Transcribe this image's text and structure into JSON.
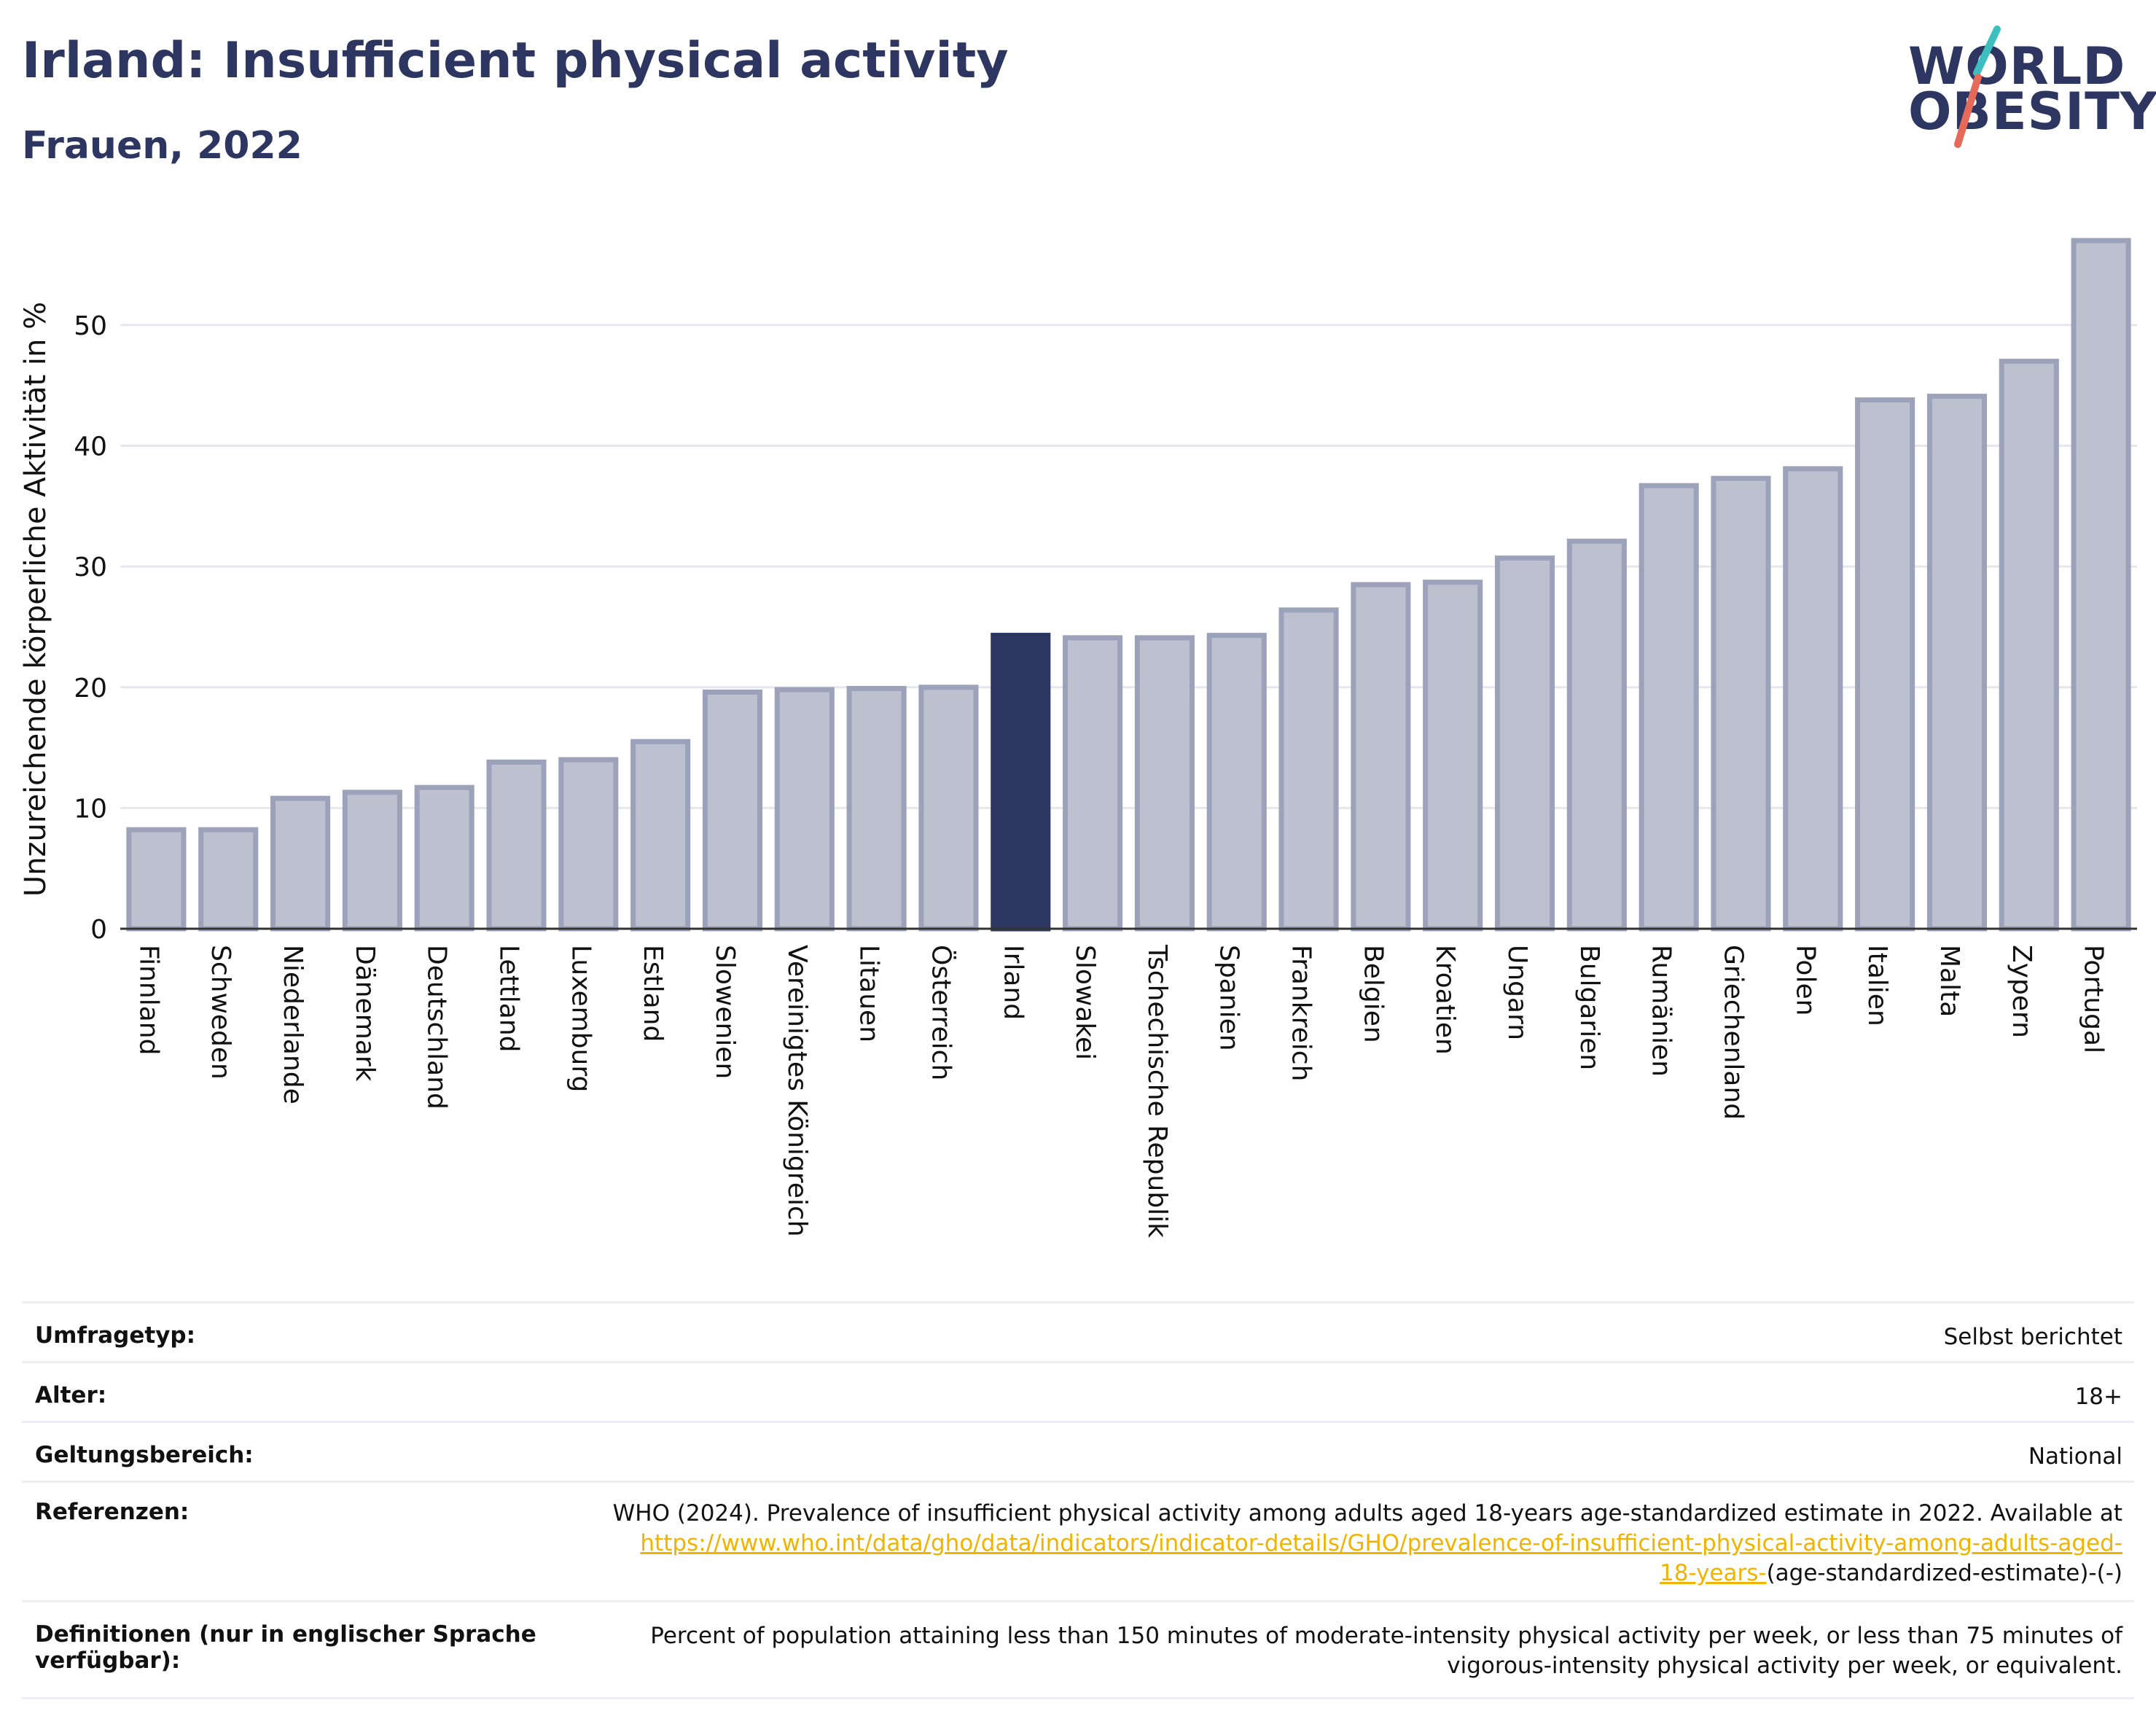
{
  "header": {
    "title": "Irland: Insufficient physical activity",
    "subtitle": "Frauen, 2022"
  },
  "logo": {
    "line1": "WORLD",
    "line2": "OBESITY",
    "text_color": "#2d3660",
    "slash_colors": [
      "#3bbfbf",
      "#e56a5a"
    ]
  },
  "colors": {
    "bar_default": "#bcc0cf",
    "bar_border": "#9ca2ba",
    "bar_highlight": "#2d3660",
    "grid": "#e6e7ee",
    "axis": "#333333",
    "link": "#f0b400"
  },
  "chart_data": {
    "type": "bar",
    "title": "Irland: Insufficient physical activity",
    "subtitle": "Frauen, 2022",
    "ylabel": "Unzureichende körperliche Aktivität in %",
    "xlabel": "",
    "ylim": [
      0,
      57
    ],
    "yticks": [
      0,
      10,
      20,
      30,
      40,
      50
    ],
    "grid": true,
    "highlight": "Irland",
    "categories": [
      "Finnland",
      "Schweden",
      "Niederlande",
      "Dänemark",
      "Deutschland",
      "Lettland",
      "Luxemburg",
      "Estland",
      "Slowenien",
      "Vereinigtes Königreich",
      "Litauen",
      "Österreich",
      "Irland",
      "Slowakei",
      "Tschechische Republik",
      "Spanien",
      "Frankreich",
      "Belgien",
      "Kroatien",
      "Ungarn",
      "Bulgarien",
      "Rumänien",
      "Griechenland",
      "Polen",
      "Italien",
      "Malta",
      "Zypern",
      "Portugal"
    ],
    "values": [
      8.2,
      8.2,
      10.8,
      11.3,
      11.7,
      13.8,
      14.0,
      15.5,
      19.6,
      19.8,
      19.9,
      20.0,
      24.3,
      24.1,
      24.1,
      24.3,
      26.4,
      28.5,
      28.7,
      30.7,
      32.1,
      36.7,
      37.3,
      38.1,
      43.8,
      44.1,
      47.0,
      57.0
    ]
  },
  "info": {
    "rows": [
      {
        "label": "Umfragetyp:",
        "value": "Selbst berichtet"
      },
      {
        "label": "Alter:",
        "value": "18+"
      },
      {
        "label": "Geltungsbereich:",
        "value": "National"
      }
    ],
    "references": {
      "label": "Referenzen:",
      "text": "WHO (2024). Prevalence of insufficient physical activity among adults aged 18-years age-standardized estimate in 2022. Available at",
      "link": "https://www.who.int/data/gho/data/indicators/indicator-details/GHO/prevalence-of-insufficient-physical-activity-among-adults-aged-18-years-",
      "suffix": "(age-standardized-estimate)-(-)"
    },
    "definitions": {
      "label": "Definitionen (nur in englischer Sprache verfügbar):",
      "value": "Percent of population attaining less than 150 minutes of moderate-intensity physical activity per week, or less than 75 minutes of vigorous-intensity physical activity per week, or equivalent."
    }
  }
}
